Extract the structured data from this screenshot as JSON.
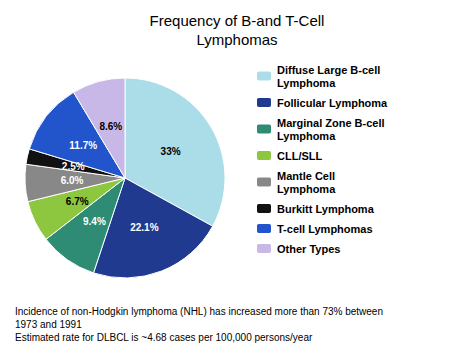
{
  "chart_data": {
    "type": "pie",
    "title": "Frequency of B-and T-Cell\nLymphomas",
    "categories": [
      "Diffuse Large B-cell\nLymphoma",
      "Follicular Lymphoma",
      "Marginal Zone B-cell\nLymphoma",
      "CLL/SLL",
      "Mantle Cell\nLymphoma",
      "Burkitt Lymphoma",
      "T-cell Lymphomas",
      "Other Types"
    ],
    "values": [
      33.0,
      22.1,
      9.4,
      6.7,
      6.0,
      2.5,
      11.7,
      8.6
    ],
    "value_labels": [
      "33%",
      "22.1%",
      "9.4%",
      "6.7%",
      "6.0%",
      "2.5%",
      "11.7%",
      "8.6%"
    ],
    "colors": [
      "#aadde8",
      "#1f3a8f",
      "#2e8b74",
      "#8dc63f",
      "#888888",
      "#111111",
      "#2255cc",
      "#c8b8e8"
    ],
    "data_labels": true,
    "legend": "right",
    "annotations": [
      "Incidence of non-Hodgkin lymphoma (NHL) has increased more than 73% between",
      "1973 and 1991",
      "Estimated rate for DLBCL is ~4.68 cases per 100,000 persons/year"
    ]
  }
}
